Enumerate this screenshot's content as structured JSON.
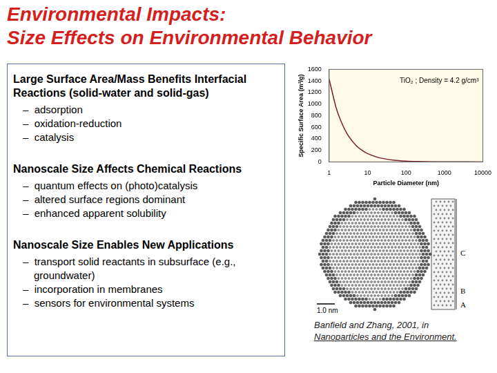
{
  "title": [
    "Environmental Impacts:",
    "Size Effects on Environmental Behavior"
  ],
  "sections": [
    {
      "heading": "Large Surface Area/Mass Benefits Interfacial Reactions (solid-water and solid-gas)",
      "items": [
        "adsorption",
        "oxidation-reduction",
        "catalysis"
      ]
    },
    {
      "heading": "Nanoscale Size Affects Chemical Reactions",
      "items": [
        "quantum effects on (photo)catalysis",
        "altered surface regions dominant",
        "enhanced apparent solubility"
      ]
    },
    {
      "heading": "Nanoscale Size Enables New Applications",
      "items": [
        "transport solid reactants in subsurface (e.g., groundwater)",
        "incorporation in membranes",
        "sensors for environmental systems"
      ]
    }
  ],
  "chart_data": {
    "type": "line",
    "annotation": "TiO₂ ; Density = 4.2 g/cm³",
    "x_label": "Particle Diameter (nm)",
    "y_label": "Specific Surface Area (m²/g)",
    "x": [
      1,
      1.5,
      2,
      3,
      5,
      7,
      10,
      20,
      50,
      100,
      200,
      500,
      1000,
      10000
    ],
    "values": [
      1430,
      950,
      715,
      475,
      285,
      205,
      143,
      72,
      29,
      14,
      7,
      3,
      1.4,
      0.1
    ],
    "color": "#7b1c2e",
    "log": "x",
    "grid": false,
    "xlim": [
      1,
      10000
    ],
    "xticks": [
      1,
      10,
      100,
      1000,
      10000
    ],
    "ylim": [
      0,
      1600
    ],
    "yticks": [
      0,
      200,
      400,
      600,
      800,
      1000,
      1200,
      1400,
      1600
    ]
  },
  "figure": {
    "labels": [
      "C",
      "B",
      "A"
    ],
    "scale_bar": "1.0 nm"
  },
  "citation": {
    "text": "Banfield and Zhang, 2001, in ",
    "source": "Nanoparticles and the Environment."
  }
}
